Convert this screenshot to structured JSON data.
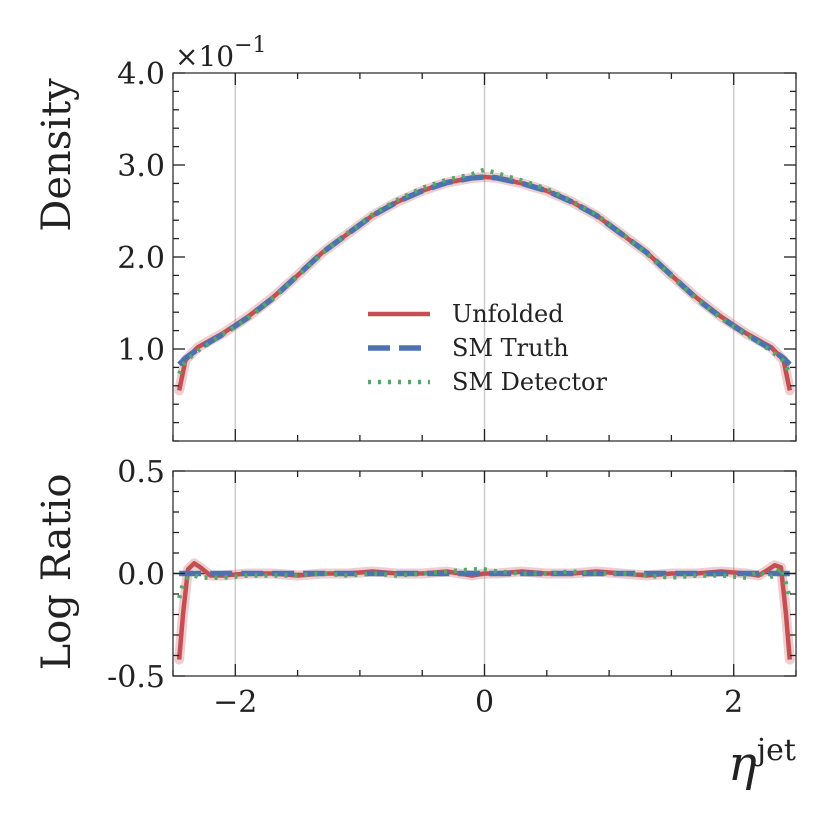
{
  "chart_data": {
    "type": "line",
    "x_label_symbol": "η",
    "x_label_superscript": "jet",
    "xlim": [
      -2.5,
      2.5
    ],
    "x_ticks": [
      -2,
      0,
      2
    ],
    "x_tick_labels": [
      "−2",
      "0",
      "2"
    ],
    "grid": "vertical lines at major x ticks",
    "legend_position": "center",
    "series_styles": [
      {
        "name": "Unfolded",
        "color": "#c44e52",
        "dash": "solid"
      },
      {
        "name": "SM Truth",
        "color": "#4c72b0",
        "dash": "dashed"
      },
      {
        "name": "SM Detector",
        "color": "#55a868",
        "dash": "dotted"
      }
    ],
    "top_panel": {
      "ylabel": "Density",
      "y_multiplier": "×10",
      "y_multiplier_exponent": "−1",
      "ylim": [
        0,
        4.0
      ],
      "y_ticks": [
        1.0,
        2.0,
        3.0,
        4.0
      ],
      "y_tick_labels": [
        "1.0",
        "2.0",
        "3.0",
        "4.0"
      ],
      "x": [
        -2.45,
        -2.4,
        -2.3,
        -2.1,
        -1.9,
        -1.7,
        -1.5,
        -1.3,
        -1.1,
        -0.9,
        -0.7,
        -0.5,
        -0.3,
        -0.1,
        0.0,
        0.1,
        0.3,
        0.5,
        0.7,
        0.9,
        1.1,
        1.3,
        1.5,
        1.7,
        1.9,
        2.1,
        2.3,
        2.4,
        2.45
      ],
      "series": [
        {
          "name": "Unfolded",
          "values": [
            0.55,
            0.88,
            1.02,
            1.17,
            1.35,
            1.56,
            1.8,
            2.05,
            2.25,
            2.45,
            2.6,
            2.72,
            2.81,
            2.86,
            2.87,
            2.86,
            2.8,
            2.72,
            2.6,
            2.45,
            2.25,
            2.05,
            1.8,
            1.56,
            1.35,
            1.17,
            1.02,
            0.88,
            0.55
          ]
        },
        {
          "name": "SM Truth",
          "values": [
            0.83,
            0.9,
            1.0,
            1.16,
            1.34,
            1.55,
            1.8,
            2.05,
            2.25,
            2.45,
            2.6,
            2.72,
            2.81,
            2.86,
            2.87,
            2.86,
            2.8,
            2.72,
            2.6,
            2.45,
            2.25,
            2.05,
            1.8,
            1.55,
            1.34,
            1.16,
            1.0,
            0.9,
            0.83
          ]
        },
        {
          "name": "SM Detector",
          "values": [
            0.73,
            0.87,
            0.98,
            1.16,
            1.33,
            1.55,
            1.79,
            2.04,
            2.26,
            2.46,
            2.62,
            2.75,
            2.84,
            2.9,
            2.95,
            2.91,
            2.83,
            2.74,
            2.61,
            2.46,
            2.26,
            2.04,
            1.79,
            1.55,
            1.33,
            1.16,
            0.98,
            0.87,
            0.73
          ]
        }
      ]
    },
    "bottom_panel": {
      "ylabel": "Log Ratio",
      "ylim": [
        -0.5,
        0.5
      ],
      "y_ticks": [
        -0.5,
        0.0,
        0.5
      ],
      "y_tick_labels": [
        "-0.5",
        "0.0",
        "0.5"
      ],
      "x": [
        -2.45,
        -2.42,
        -2.38,
        -2.33,
        -2.28,
        -2.2,
        -2.1,
        -1.9,
        -1.7,
        -1.5,
        -1.3,
        -1.1,
        -0.9,
        -0.7,
        -0.5,
        -0.3,
        -0.1,
        0.0,
        0.1,
        0.3,
        0.5,
        0.7,
        0.9,
        1.1,
        1.3,
        1.5,
        1.7,
        1.9,
        2.1,
        2.2,
        2.28,
        2.33,
        2.38,
        2.42,
        2.45
      ],
      "series": [
        {
          "name": "Unfolded",
          "values": [
            -0.42,
            -0.2,
            0.02,
            0.05,
            0.03,
            -0.01,
            -0.01,
            0.0,
            0.0,
            -0.01,
            0.0,
            0.0,
            0.01,
            0.0,
            0.0,
            0.01,
            -0.01,
            0.0,
            0.0,
            0.01,
            0.0,
            0.0,
            0.01,
            0.0,
            -0.01,
            0.0,
            0.0,
            0.01,
            0.0,
            -0.01,
            0.02,
            0.04,
            0.03,
            -0.2,
            -0.42
          ]
        },
        {
          "name": "SM Truth",
          "values": [
            0.0,
            0.0,
            0.0,
            0.0,
            0.0,
            0.0,
            0.0,
            0.0,
            0.0,
            0.0,
            0.0,
            0.0,
            0.0,
            0.0,
            0.0,
            0.0,
            0.0,
            0.0,
            0.0,
            0.0,
            0.0,
            0.0,
            0.0,
            0.0,
            0.0,
            0.0,
            0.0,
            0.0,
            0.0,
            0.0,
            0.0,
            0.0,
            0.0,
            0.0,
            0.0
          ]
        },
        {
          "name": "SM Detector",
          "values": [
            -0.12,
            -0.05,
            -0.02,
            -0.01,
            -0.02,
            -0.02,
            -0.02,
            -0.01,
            -0.01,
            -0.01,
            0.0,
            -0.01,
            0.0,
            -0.01,
            0.0,
            0.01,
            0.02,
            0.02,
            0.01,
            0.0,
            0.0,
            0.01,
            0.0,
            0.0,
            -0.01,
            -0.02,
            -0.01,
            -0.01,
            -0.02,
            0.01,
            -0.02,
            -0.01,
            0.03,
            -0.05,
            -0.12
          ]
        }
      ]
    },
    "legend": [
      "Unfolded",
      "SM Truth",
      "SM Detector"
    ]
  }
}
